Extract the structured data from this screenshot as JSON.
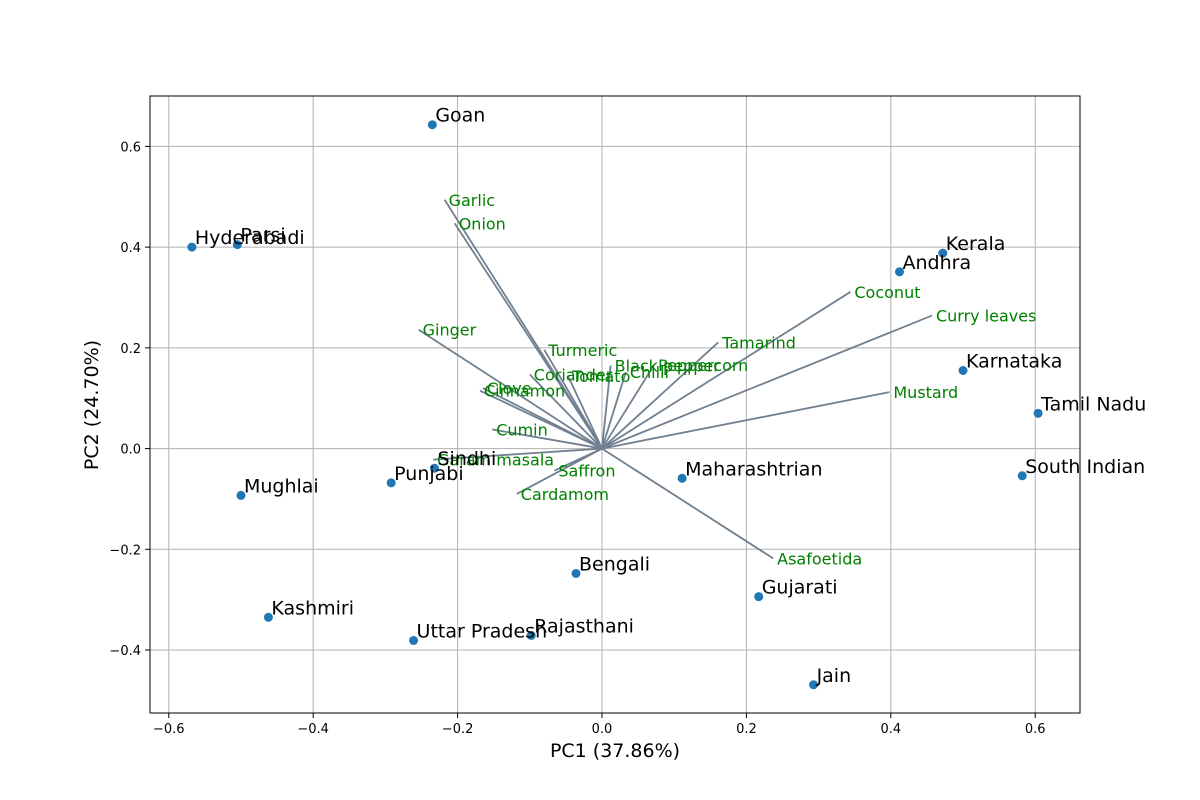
{
  "chart_data": {
    "type": "scatter",
    "title": "",
    "xlabel": "PC1 (37.86%)",
    "ylabel": "PC2 (24.70%)",
    "xlim": [
      -0.626,
      0.662
    ],
    "ylim": [
      -0.525,
      0.7
    ],
    "xticks": [
      -0.6,
      -0.4,
      -0.2,
      0.0,
      0.2,
      0.4,
      0.6
    ],
    "yticks": [
      -0.4,
      -0.2,
      0.0,
      0.2,
      0.4,
      0.6
    ],
    "xtick_labels": [
      "−0.6",
      "−0.4",
      "−0.2",
      "0.0",
      "0.2",
      "0.4",
      "0.6"
    ],
    "ytick_labels": [
      "−0.4",
      "−0.2",
      "0.0",
      "0.2",
      "0.4",
      "0.6"
    ],
    "grid": true,
    "colors": {
      "points": "#1f77b4",
      "arrows": "#708090",
      "loading_labels": "#008000",
      "grid": "#b0b0b0"
    },
    "points": [
      {
        "name": "Goan",
        "x": -0.235,
        "y": 0.643
      },
      {
        "name": "Parsi",
        "x": -0.505,
        "y": 0.405
      },
      {
        "name": "Hyderabadi",
        "x": -0.568,
        "y": 0.4
      },
      {
        "name": "Kerala",
        "x": 0.472,
        "y": 0.388
      },
      {
        "name": "Andhra",
        "x": 0.412,
        "y": 0.351
      },
      {
        "name": "Karnataka",
        "x": 0.5,
        "y": 0.155
      },
      {
        "name": "Tamil Nadu",
        "x": 0.604,
        "y": 0.07
      },
      {
        "name": "South Indian",
        "x": 0.582,
        "y": -0.054
      },
      {
        "name": "Sindhi",
        "x": -0.232,
        "y": -0.039
      },
      {
        "name": "Punjabi",
        "x": -0.292,
        "y": -0.068
      },
      {
        "name": "Mughlai",
        "x": -0.5,
        "y": -0.093
      },
      {
        "name": "Maharashtrian",
        "x": 0.111,
        "y": -0.059
      },
      {
        "name": "Bengali",
        "x": -0.036,
        "y": -0.248
      },
      {
        "name": "Gujarati",
        "x": 0.217,
        "y": -0.294
      },
      {
        "name": "Kashmiri",
        "x": -0.462,
        "y": -0.335
      },
      {
        "name": "Uttar Pradesh",
        "x": -0.261,
        "y": -0.381
      },
      {
        "name": "Rajasthani",
        "x": -0.098,
        "y": -0.371
      },
      {
        "name": "Jain",
        "x": 0.293,
        "y": -0.469
      }
    ],
    "loadings": [
      {
        "name": "Garlic",
        "x": -0.218,
        "y": 0.494
      },
      {
        "name": "Onion",
        "x": -0.204,
        "y": 0.447
      },
      {
        "name": "Ginger",
        "x": -0.254,
        "y": 0.236
      },
      {
        "name": "Turmeric",
        "x": -0.08,
        "y": 0.196
      },
      {
        "name": "Clove",
        "x": -0.165,
        "y": 0.12
      },
      {
        "name": "Tomato",
        "x": -0.047,
        "y": 0.144
      },
      {
        "name": "Cinnamon",
        "x": -0.169,
        "y": 0.115
      },
      {
        "name": "Coriander",
        "x": -0.1,
        "y": 0.147
      },
      {
        "name": "Black pepper",
        "x": 0.012,
        "y": 0.165
      },
      {
        "name": "Chilli",
        "x": 0.033,
        "y": 0.152
      },
      {
        "name": "Cumin",
        "x": -0.152,
        "y": 0.038
      },
      {
        "name": "Garam masala",
        "x": -0.234,
        "y": -0.022
      },
      {
        "name": "Saffron",
        "x": -0.066,
        "y": -0.044
      },
      {
        "name": "Cardamom",
        "x": -0.118,
        "y": -0.09
      },
      {
        "name": "Tamarind",
        "x": 0.161,
        "y": 0.211
      },
      {
        "name": "Coconut",
        "x": 0.344,
        "y": 0.311
      },
      {
        "name": "Curry leaves",
        "x": 0.457,
        "y": 0.264
      },
      {
        "name": "Peppercorn",
        "x": 0.072,
        "y": 0.166
      },
      {
        "name": "Mustard",
        "x": 0.398,
        "y": 0.112
      },
      {
        "name": "Asafoetida",
        "x": 0.237,
        "y": -0.218
      }
    ]
  }
}
